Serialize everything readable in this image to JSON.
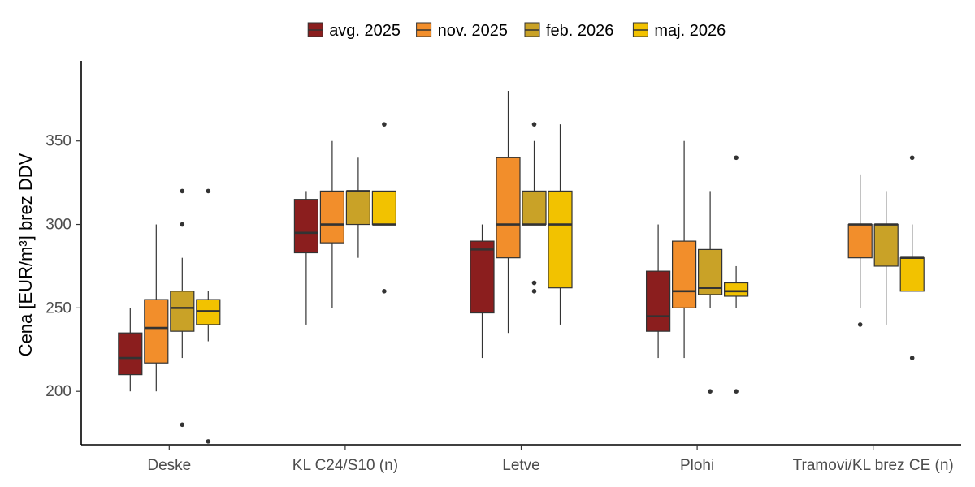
{
  "chart_data": {
    "type": "boxplot",
    "title": "",
    "xlabel": "",
    "ylabel": "Cena [EUR/m³] brez DDV",
    "ylim": [
      168,
      398
    ],
    "yticks": [
      200,
      250,
      300,
      350
    ],
    "grid": false,
    "legend_position": "top",
    "categories": [
      "Deske",
      "KL C24/S10 (n)",
      "Letve",
      "Plohi",
      "Tramovi/KL brez CE (n)"
    ],
    "series": [
      {
        "name": "avg. 2025",
        "color": "#8B1E1E",
        "boxes": [
          {
            "category": "Deske",
            "min": 200,
            "q1": 210,
            "median": 220,
            "q3": 235,
            "max": 250,
            "outliers": []
          },
          {
            "category": "KL C24/S10 (n)",
            "min": 240,
            "q1": 283,
            "median": 295,
            "q3": 315,
            "max": 320,
            "outliers": []
          },
          {
            "category": "Letve",
            "min": 220,
            "q1": 247,
            "median": 285,
            "q3": 290,
            "max": 300,
            "outliers": []
          },
          {
            "category": "Plohi",
            "min": 220,
            "q1": 236,
            "median": 245,
            "q3": 272,
            "max": 300,
            "outliers": []
          },
          null
        ]
      },
      {
        "name": "nov. 2025",
        "color": "#F28E2B",
        "boxes": [
          {
            "category": "Deske",
            "min": 200,
            "q1": 217,
            "median": 238,
            "q3": 255,
            "max": 300,
            "outliers": []
          },
          {
            "category": "KL C24/S10 (n)",
            "min": 250,
            "q1": 289,
            "median": 300,
            "q3": 320,
            "max": 350,
            "outliers": []
          },
          {
            "category": "Letve",
            "min": 235,
            "q1": 280,
            "median": 300,
            "q3": 340,
            "max": 380,
            "outliers": []
          },
          {
            "category": "Plohi",
            "min": 220,
            "q1": 250,
            "median": 260,
            "q3": 290,
            "max": 350,
            "outliers": []
          },
          {
            "category": "Tramovi/KL brez CE (n)",
            "min": 250,
            "q1": 280,
            "median": 300,
            "q3": 300,
            "max": 330,
            "outliers": [
              240
            ]
          }
        ]
      },
      {
        "name": "feb. 2026",
        "color": "#C9A227",
        "boxes": [
          {
            "category": "Deske",
            "min": 220,
            "q1": 236,
            "median": 250,
            "q3": 260,
            "max": 280,
            "outliers": [
              320,
              300,
              180
            ]
          },
          {
            "category": "KL C24/S10 (n)",
            "min": 280,
            "q1": 300,
            "median": 320,
            "q3": 320,
            "max": 340,
            "outliers": []
          },
          {
            "category": "Letve",
            "min": 300,
            "q1": 300,
            "median": 300,
            "q3": 320,
            "max": 350,
            "outliers": [
              360,
              265,
              260
            ]
          },
          {
            "category": "Plohi",
            "min": 250,
            "q1": 258,
            "median": 262,
            "q3": 285,
            "max": 320,
            "outliers": [
              200
            ]
          },
          {
            "category": "Tramovi/KL brez CE (n)",
            "min": 240,
            "q1": 275,
            "median": 300,
            "q3": 300,
            "max": 320,
            "outliers": []
          }
        ]
      },
      {
        "name": "maj. 2026",
        "color": "#F2C200",
        "boxes": [
          {
            "category": "Deske",
            "min": 230,
            "q1": 240,
            "median": 248,
            "q3": 255,
            "max": 260,
            "outliers": [
              320,
              170
            ]
          },
          {
            "category": "KL C24/S10 (n)",
            "min": 300,
            "q1": 300,
            "median": 300,
            "q3": 320,
            "max": 320,
            "outliers": [
              360,
              260
            ]
          },
          {
            "category": "Letve",
            "min": 240,
            "q1": 262,
            "median": 300,
            "q3": 320,
            "max": 360,
            "outliers": []
          },
          {
            "category": "Plohi",
            "min": 250,
            "q1": 257,
            "median": 260,
            "q3": 265,
            "max": 275,
            "outliers": [
              340,
              200
            ]
          },
          {
            "category": "Tramovi/KL brez CE (n)",
            "min": 260,
            "q1": 260,
            "median": 280,
            "q3": 280,
            "max": 300,
            "outliers": [
              340,
              220
            ]
          }
        ]
      }
    ]
  }
}
